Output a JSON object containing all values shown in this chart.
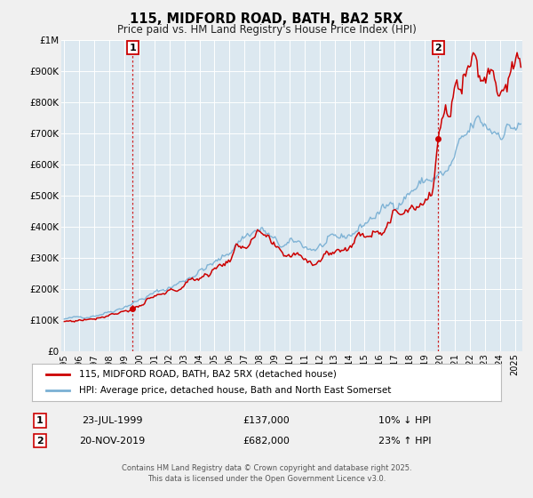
{
  "title": "115, MIDFORD ROAD, BATH, BA2 5RX",
  "subtitle": "Price paid vs. HM Land Registry's House Price Index (HPI)",
  "background_color": "#f0f0f0",
  "plot_bg_color": "#dce8f0",
  "grid_color": "#ffffff",
  "hpi_color": "#7ab0d4",
  "price_color": "#cc0000",
  "ylim": [
    0,
    1000000
  ],
  "yticks": [
    0,
    100000,
    200000,
    300000,
    400000,
    500000,
    600000,
    700000,
    800000,
    900000,
    1000000
  ],
  "ytick_labels": [
    "£0",
    "£100K",
    "£200K",
    "£300K",
    "£400K",
    "£500K",
    "£600K",
    "£700K",
    "£800K",
    "£900K",
    "£1M"
  ],
  "xlim_start": 1994.8,
  "xlim_end": 2025.5,
  "transaction1_x": 1999.55,
  "transaction1_y": 137000,
  "transaction2_x": 2019.9,
  "transaction2_y": 682000,
  "transaction1_date": "23-JUL-1999",
  "transaction1_price": "£137,000",
  "transaction1_hpi": "10% ↓ HPI",
  "transaction2_date": "20-NOV-2019",
  "transaction2_price": "£682,000",
  "transaction2_hpi": "23% ↑ HPI",
  "legend_label1": "115, MIDFORD ROAD, BATH, BA2 5RX (detached house)",
  "legend_label2": "HPI: Average price, detached house, Bath and North East Somerset",
  "footnote1": "Contains HM Land Registry data © Crown copyright and database right 2025.",
  "footnote2": "This data is licensed under the Open Government Licence v3.0.",
  "xticks": [
    1995,
    1996,
    1997,
    1998,
    1999,
    2000,
    2001,
    2002,
    2003,
    2004,
    2005,
    2006,
    2007,
    2008,
    2009,
    2010,
    2011,
    2012,
    2013,
    2014,
    2015,
    2016,
    2017,
    2018,
    2019,
    2020,
    2021,
    2022,
    2023,
    2024,
    2025
  ]
}
